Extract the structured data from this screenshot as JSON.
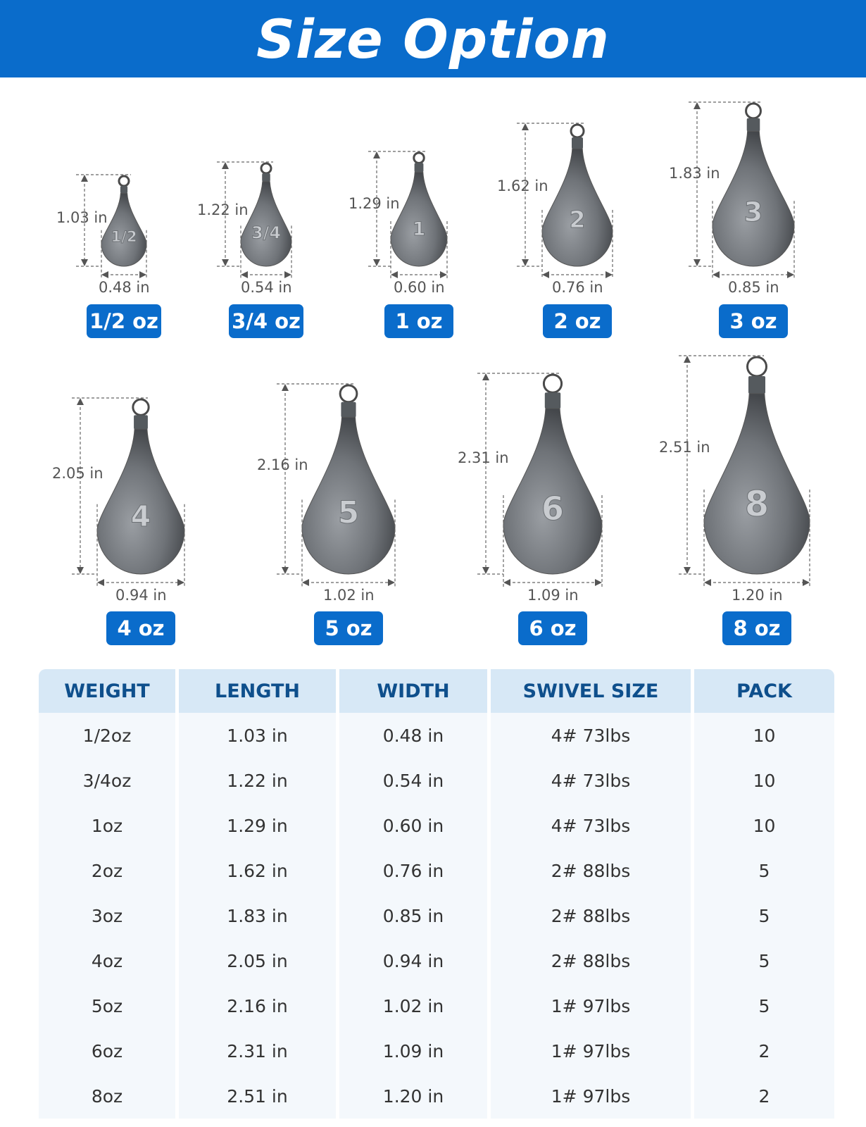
{
  "banner": {
    "title": "Size Option"
  },
  "sinkers": [
    {
      "mark": "1/2",
      "length": "1.03 in",
      "width": "0.48 in",
      "badge": "1/2 oz"
    },
    {
      "mark": "3/4",
      "length": "1.22 in",
      "width": "0.54 in",
      "badge": "3/4 oz"
    },
    {
      "mark": "1",
      "length": "1.29 in",
      "width": "0.60 in",
      "badge": "1 oz"
    },
    {
      "mark": "2",
      "length": "1.62 in",
      "width": "0.76 in",
      "badge": "2 oz"
    },
    {
      "mark": "3",
      "length": "1.83 in",
      "width": "0.85 in",
      "badge": "3 oz"
    },
    {
      "mark": "4",
      "length": "2.05 in",
      "width": "0.94 in",
      "badge": "4 oz"
    },
    {
      "mark": "5",
      "length": "2.16 in",
      "width": "1.02 in",
      "badge": "5 oz"
    },
    {
      "mark": "6",
      "length": "2.31 in",
      "width": "1.09 in",
      "badge": "6 oz"
    },
    {
      "mark": "8",
      "length": "2.51 in",
      "width": "1.20 in",
      "badge": "8 oz"
    }
  ],
  "table": {
    "headers": [
      "WEIGHT",
      "LENGTH",
      "WIDTH",
      "SWIVEL SIZE",
      "PACK"
    ],
    "rows": [
      [
        "1/2oz",
        "1.03 in",
        "0.48 in",
        "4# 73lbs",
        "10"
      ],
      [
        "3/4oz",
        "1.22 in",
        "0.54 in",
        "4# 73lbs",
        "10"
      ],
      [
        "1oz",
        "1.29 in",
        "0.60 in",
        "4# 73lbs",
        "10"
      ],
      [
        "2oz",
        "1.62 in",
        "0.76 in",
        "2# 88lbs",
        "5"
      ],
      [
        "3oz",
        "1.83 in",
        "0.85 in",
        "2# 88lbs",
        "5"
      ],
      [
        "4oz",
        "2.05 in",
        "0.94 in",
        "2# 88lbs",
        "5"
      ],
      [
        "5oz",
        "2.16 in",
        "1.02 in",
        "1# 97lbs",
        "5"
      ],
      [
        "6oz",
        "2.31 in",
        "1.09 in",
        "1# 97lbs",
        "2"
      ],
      [
        "8oz",
        "2.51 in",
        "1.20 in",
        "1# 97lbs",
        "2"
      ]
    ]
  },
  "colors": {
    "brand_blue": "#0a6ccb",
    "header_bg": "#d7e8f6",
    "header_text": "#0e4f8c",
    "cell_bg": "#f4f8fc"
  }
}
